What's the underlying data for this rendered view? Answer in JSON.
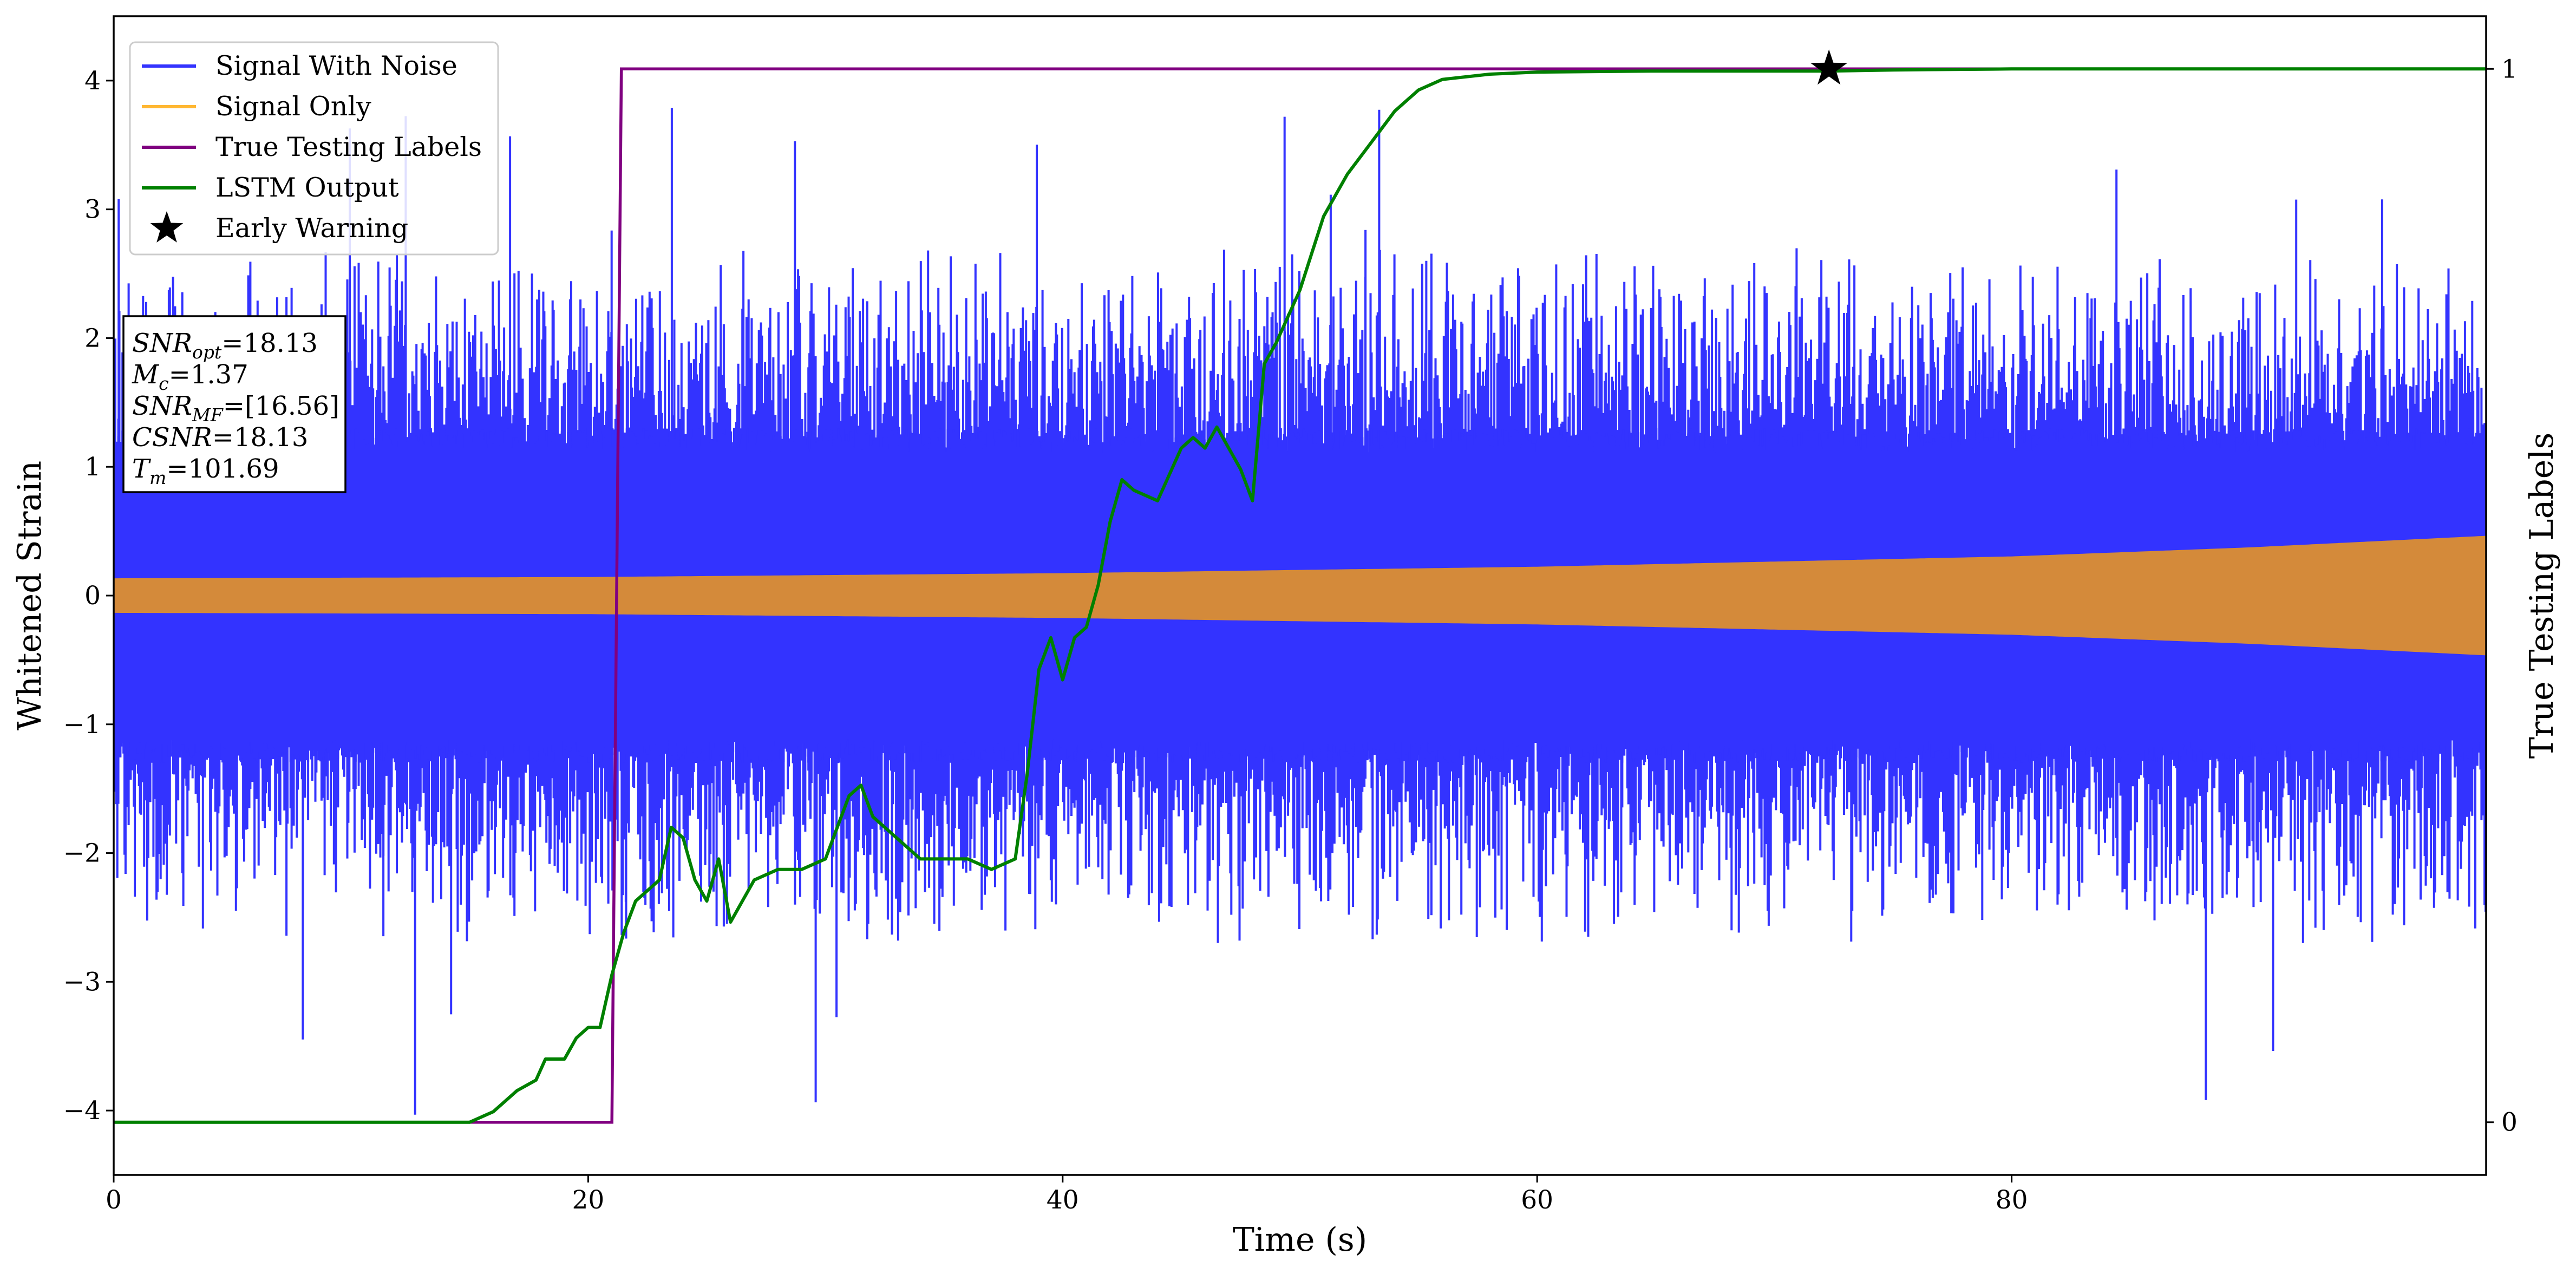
{
  "chart_data": {
    "type": "line",
    "title": "",
    "xlabel": "Time (s)",
    "ylabel": "Whitened Strain",
    "y2label": "True Testing Labels",
    "xlim": [
      0,
      100
    ],
    "ylim": [
      -4.5,
      4.5
    ],
    "y2lim": [
      -0.05,
      1.05
    ],
    "xticks": [
      0,
      20,
      40,
      60,
      80
    ],
    "yticks": [
      -4,
      -3,
      -2,
      -1,
      0,
      1,
      2,
      3,
      4
    ],
    "y2ticks": [
      0,
      1
    ],
    "grid": false,
    "legend_position": "top-left",
    "legend": [
      {
        "label": "Signal With Noise",
        "color": "#3333ff",
        "marker": "line"
      },
      {
        "label": "Signal Only",
        "color": "#ffb732",
        "marker": "line"
      },
      {
        "label": "True Testing Labels",
        "color": "#800080",
        "marker": "line"
      },
      {
        "label": "LSTM Output",
        "color": "#008000",
        "marker": "line"
      },
      {
        "label": "Early Warning",
        "color": "#000000",
        "marker": "star"
      }
    ],
    "info_box": [
      {
        "main": "SNR",
        "sub": "opt",
        "rest": "=18.13"
      },
      {
        "main": "M",
        "sub": "c",
        "rest": "=1.37"
      },
      {
        "main": "SNR",
        "sub": "MF",
        "rest": "=[16.56]"
      },
      {
        "main": "CSNR",
        "sub": "",
        "rest": "=18.13"
      },
      {
        "main": "T",
        "sub": "m",
        "rest": "=101.69"
      }
    ],
    "series": [
      {
        "name": "Signal With Noise",
        "color": "#3333ff",
        "kind": "noise_band",
        "core_amplitude": 1.3,
        "typical_peak": 2.3,
        "max_spike": 3.8,
        "min_spike": -4.05
      },
      {
        "name": "Signal Only",
        "color": "#ffb732",
        "kind": "chirp_envelope",
        "envelope": [
          [
            0,
            0.13
          ],
          [
            20,
            0.14
          ],
          [
            40,
            0.17
          ],
          [
            60,
            0.22
          ],
          [
            80,
            0.3
          ],
          [
            90,
            0.37
          ],
          [
            100,
            0.46
          ]
        ]
      },
      {
        "name": "True Testing Labels",
        "color": "#800080",
        "axis": "right",
        "x": [
          0,
          21.0,
          21.4,
          100
        ],
        "y": [
          0,
          0,
          1,
          1
        ]
      },
      {
        "name": "LSTM Output",
        "color": "#008000",
        "axis": "right",
        "x": [
          0,
          15,
          16,
          17,
          17.8,
          18.2,
          19,
          19.5,
          20,
          20.5,
          21,
          21.5,
          22,
          22.5,
          23,
          23.5,
          24,
          24.5,
          25,
          25.5,
          26,
          26.5,
          27,
          28,
          29,
          30,
          31,
          31.5,
          32,
          33,
          34,
          35,
          36,
          37,
          38,
          38.5,
          39,
          39.5,
          40,
          40.5,
          41,
          41.5,
          42,
          42.5,
          43,
          44,
          45,
          45.5,
          46,
          46.5,
          47,
          47.5,
          48,
          48.5,
          49,
          50,
          51,
          52,
          53,
          54,
          55,
          56,
          58,
          60,
          65,
          70,
          72.3,
          75,
          80,
          90,
          100
        ],
        "y": [
          0,
          0,
          0.01,
          0.03,
          0.04,
          0.06,
          0.06,
          0.08,
          0.09,
          0.09,
          0.14,
          0.18,
          0.21,
          0.22,
          0.23,
          0.28,
          0.27,
          0.23,
          0.21,
          0.25,
          0.19,
          0.21,
          0.23,
          0.24,
          0.24,
          0.25,
          0.31,
          0.32,
          0.29,
          0.27,
          0.25,
          0.25,
          0.25,
          0.24,
          0.25,
          0.33,
          0.43,
          0.46,
          0.42,
          0.46,
          0.47,
          0.51,
          0.57,
          0.61,
          0.6,
          0.59,
          0.64,
          0.65,
          0.64,
          0.66,
          0.64,
          0.62,
          0.59,
          0.72,
          0.74,
          0.79,
          0.86,
          0.9,
          0.93,
          0.96,
          0.98,
          0.99,
          0.995,
          0.997,
          0.998,
          0.998,
          0.998,
          0.999,
          1.0,
          1.0,
          1.0
        ]
      }
    ],
    "early_warning": {
      "x": 72.3,
      "y": 1.0
    }
  }
}
